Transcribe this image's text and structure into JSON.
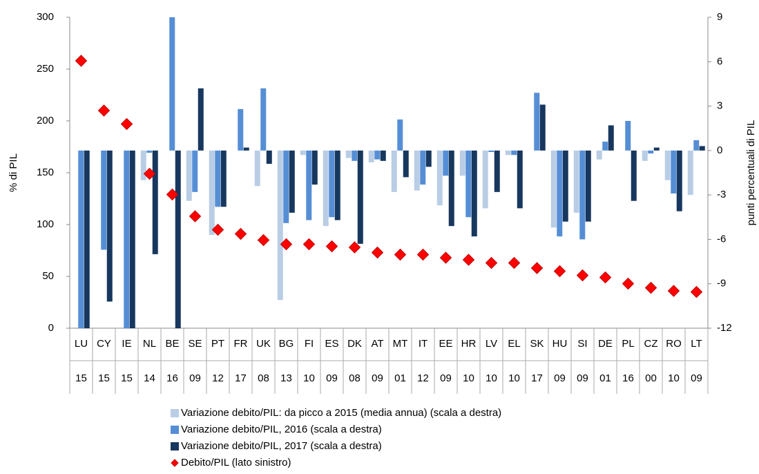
{
  "chart_data": {
    "type": "bar",
    "categories": [
      "LU",
      "CY",
      "IE",
      "NL",
      "BE",
      "SE",
      "PT",
      "FR",
      "UK",
      "BG",
      "FI",
      "ES",
      "DK",
      "AT",
      "MT",
      "IT",
      "EE",
      "HR",
      "LV",
      "EL",
      "SK",
      "HU",
      "SI",
      "DE",
      "PL",
      "CZ",
      "RO",
      "LT"
    ],
    "periods": [
      "15",
      "15",
      "15",
      "14",
      "16",
      "09",
      "12",
      "17",
      "08",
      "13",
      "10",
      "09",
      "08",
      "09",
      "01",
      "12",
      "09",
      "10",
      "10",
      "10",
      "17",
      "09",
      "09",
      "01",
      "16",
      "00",
      "10",
      "09"
    ],
    "ylabel": "% di PIL",
    "y2label": "punti percentuali di PIL",
    "ylim": [
      0,
      300
    ],
    "yticks": [
      0,
      50,
      100,
      150,
      200,
      250,
      300
    ],
    "y2lim": [
      -12,
      9
    ],
    "y2ticks": [
      -12,
      -9,
      -6,
      -3,
      0,
      3,
      6,
      9
    ],
    "series": [
      {
        "name": "Variazione debito/PIL: da picco a 2015 (media annua) (scala a destra)",
        "type": "bar",
        "axis": "y2",
        "color": "#b9cde5",
        "values": [
          null,
          null,
          null,
          -2.0,
          null,
          -3.4,
          -5.7,
          null,
          -2.4,
          -10.1,
          -0.3,
          -5.1,
          -0.5,
          -0.8,
          -2.8,
          -2.7,
          -3.7,
          -1.7,
          -3.9,
          -0.3,
          null,
          -5.2,
          -4.2,
          -0.6,
          null,
          -0.7,
          -2.0,
          -3.0
        ]
      },
      {
        "name": "Variazione debito/PIL, 2016 (scala a destra)",
        "type": "bar",
        "axis": "y2",
        "color": "#558ed5",
        "values": [
          -12,
          -6.7,
          -12,
          -0.15,
          9,
          -2.8,
          -3.8,
          2.8,
          4.2,
          -4.9,
          -4.7,
          -4.5,
          -0.7,
          -0.6,
          2.1,
          -2.3,
          -1.7,
          -4.5,
          -0.1,
          -0.3,
          3.9,
          -5.8,
          -6.0,
          0.6,
          2.0,
          -0.2,
          -2.9,
          0.7
        ]
      },
      {
        "name": "Variazione debito/PIL, 2017 (scala a destra)",
        "type": "bar",
        "axis": "y2",
        "color": "#17375e",
        "values": [
          -12,
          -10.2,
          -12,
          -7.0,
          -12,
          4.2,
          -3.8,
          0.2,
          -0.9,
          -4.2,
          -2.3,
          -4.7,
          -6.3,
          -0.7,
          -1.8,
          -1.1,
          -5.1,
          -5.8,
          -2.8,
          -3.9,
          3.1,
          -4.8,
          -4.8,
          1.7,
          -3.4,
          0.2,
          -4.1,
          0.3
        ]
      },
      {
        "name": "Debito/PIL (lato sinistro)",
        "type": "scatter",
        "axis": "y",
        "color": "#ff0000",
        "values": [
          258,
          210,
          197,
          149,
          129,
          108,
          95,
          91,
          85,
          81,
          81,
          79,
          78,
          73,
          71,
          71,
          68,
          66,
          63,
          63,
          58,
          55,
          51,
          49,
          43,
          39,
          36,
          35
        ]
      }
    ]
  }
}
